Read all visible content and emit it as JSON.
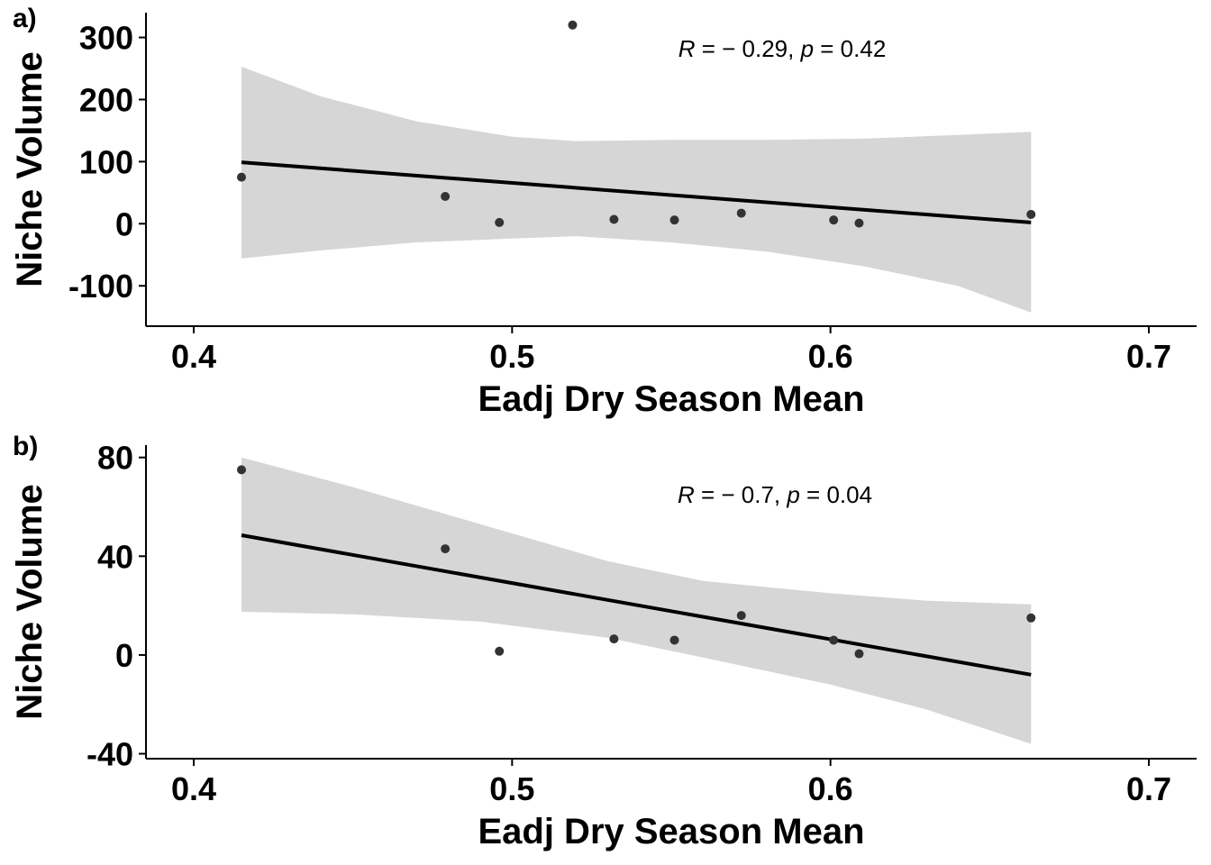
{
  "chart_data": [
    {
      "type": "scatter",
      "panel_label": "a)",
      "xlabel": "Eadj Dry Season Mean",
      "ylabel": "Niche Volume",
      "xlim": [
        0.385,
        0.715
      ],
      "ylim": [
        -165,
        340
      ],
      "x_ticks": [
        0.4,
        0.5,
        0.6,
        0.7
      ],
      "x_tick_labels": [
        "0.4",
        "0.5",
        "0.6",
        "0.7"
      ],
      "y_ticks": [
        -100,
        0,
        100,
        200,
        300
      ],
      "y_tick_labels": [
        "-100",
        "0",
        "100",
        "200",
        "300"
      ],
      "grid": false,
      "annotation": {
        "r_symbol": "R",
        "r_text": " = − 0.29, ",
        "p_symbol": "p",
        "p_text": " = 0.42",
        "placement": "top-center"
      },
      "points": [
        {
          "x": 0.415,
          "y": 75
        },
        {
          "x": 0.479,
          "y": 44
        },
        {
          "x": 0.496,
          "y": 2
        },
        {
          "x": 0.519,
          "y": 320
        },
        {
          "x": 0.532,
          "y": 7
        },
        {
          "x": 0.551,
          "y": 6
        },
        {
          "x": 0.572,
          "y": 17
        },
        {
          "x": 0.601,
          "y": 6
        },
        {
          "x": 0.609,
          "y": 1
        },
        {
          "x": 0.663,
          "y": 15
        }
      ],
      "fit_line": {
        "x": [
          0.415,
          0.663
        ],
        "y": [
          99,
          2
        ]
      },
      "confidence_band": {
        "x": [
          0.415,
          0.44,
          0.47,
          0.5,
          0.52,
          0.55,
          0.58,
          0.61,
          0.64,
          0.663
        ],
        "upper": [
          253,
          205,
          165,
          140,
          133,
          135,
          135,
          137,
          143,
          148
        ],
        "lower": [
          -56,
          -43,
          -30,
          -24,
          -20,
          -30,
          -45,
          -68,
          -100,
          -143
        ]
      },
      "colors": {
        "points": "#333333",
        "line": "#000000",
        "band": "#d6d6d6"
      }
    },
    {
      "type": "scatter",
      "panel_label": "b)",
      "xlabel": "Eadj Dry Season Mean",
      "ylabel": "Niche Volume",
      "xlim": [
        0.385,
        0.715
      ],
      "ylim": [
        -42,
        85
      ],
      "x_ticks": [
        0.4,
        0.5,
        0.6,
        0.7
      ],
      "x_tick_labels": [
        "0.4",
        "0.5",
        "0.6",
        "0.7"
      ],
      "y_ticks": [
        -40,
        0,
        40,
        80
      ],
      "y_tick_labels": [
        "-40",
        "0",
        "40",
        "80"
      ],
      "grid": false,
      "annotation": {
        "r_symbol": "R",
        "r_text": " = − 0.7, ",
        "p_symbol": "p",
        "p_text": " = 0.04",
        "placement": "top-center"
      },
      "points": [
        {
          "x": 0.415,
          "y": 75
        },
        {
          "x": 0.479,
          "y": 43
        },
        {
          "x": 0.496,
          "y": 1.5
        },
        {
          "x": 0.532,
          "y": 6.5
        },
        {
          "x": 0.551,
          "y": 6
        },
        {
          "x": 0.572,
          "y": 16
        },
        {
          "x": 0.601,
          "y": 6
        },
        {
          "x": 0.609,
          "y": 0.5
        },
        {
          "x": 0.663,
          "y": 15
        }
      ],
      "fit_line": {
        "x": [
          0.415,
          0.663
        ],
        "y": [
          48.5,
          -8
        ]
      },
      "confidence_band": {
        "x": [
          0.415,
          0.45,
          0.49,
          0.53,
          0.56,
          0.6,
          0.63,
          0.663
        ],
        "upper": [
          80,
          68,
          53,
          38,
          30,
          25,
          22,
          20.5
        ],
        "lower": [
          17.5,
          16.5,
          13.5,
          7,
          -1,
          -12,
          -22,
          -36
        ]
      },
      "colors": {
        "points": "#333333",
        "line": "#000000",
        "band": "#d6d6d6"
      }
    }
  ]
}
